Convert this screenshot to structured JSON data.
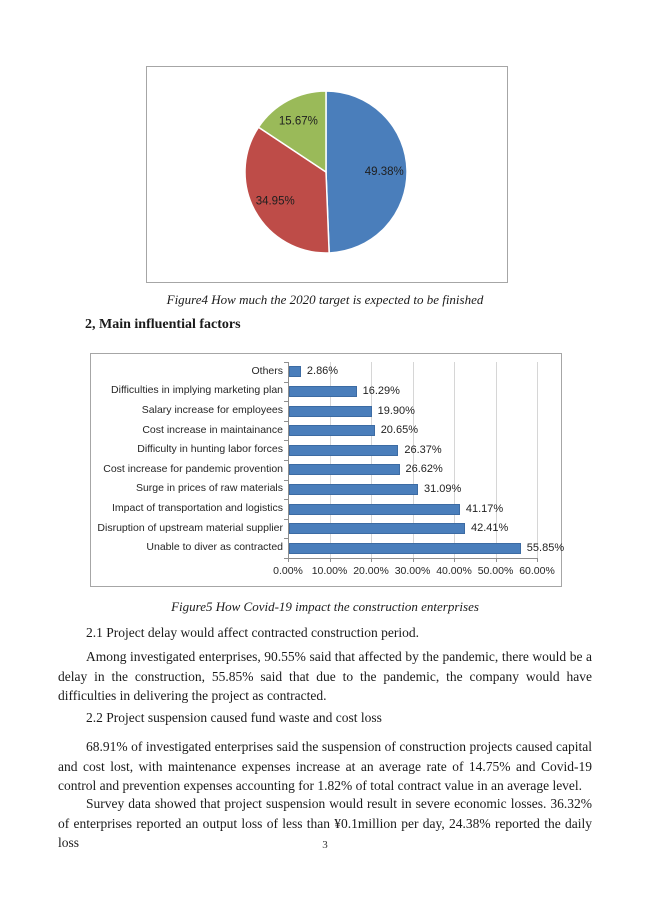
{
  "document": {
    "figure4_caption": "Figure4 How much the 2020 target is expected to be finished",
    "section_heading": "2, Main influential factors",
    "figure5_caption": "Figure5 How Covid-19 impact the construction enterprises",
    "para_2_1": "2.1 Project delay would affect contracted construction period.",
    "para_2_1_body": "Among investigated enterprises, 90.55% said that affected by the pandemic, there would be a delay in the construction, 55.85% said that due to the pandemic, the company would have difficulties in delivering the project as contracted.",
    "para_2_2": "2.2 Project suspension caused fund waste and cost loss",
    "para_2_2_body": "68.91% of investigated enterprises said the suspension of construction projects caused capital and cost lost, with maintenance expenses increase at an average rate of 14.75% and Covid-19 control and prevention expenses accounting for 1.82% of total contract value in an average level.",
    "para_survey": "Survey data showed that project suspension would result in severe economic losses. 36.32% of enterprises reported an output loss of less than ¥0.1million per day, 24.38% reported the daily loss",
    "page_number": "3"
  },
  "chart_data": [
    {
      "type": "pie",
      "title": "How much the 2020 target is expected to be finished",
      "labels": [
        "49.38%",
        "34.95%",
        "15.67%"
      ],
      "values": [
        49.38,
        34.95,
        15.67
      ],
      "colors": [
        "#4a7ebb",
        "#be4c48",
        "#9aba59"
      ],
      "start_angle_deg": 0,
      "direction": "clockwise",
      "legend": "none"
    },
    {
      "type": "bar",
      "orientation": "horizontal",
      "title": "How Covid-19 impact the construction enterprises",
      "categories": [
        "Others",
        "Difficulties in implying marketing plan",
        "Salary increase for employees",
        "Cost increase in maintainance",
        "Difficulty in hunting labor forces",
        "Cost increase for pandemic provention",
        "Surge in prices of raw materials",
        "Impact of transportation and logistics",
        "Disruption of upstream material supplier",
        "Unable to diver as contracted"
      ],
      "values": [
        2.86,
        16.29,
        19.9,
        20.65,
        26.37,
        26.62,
        31.09,
        41.17,
        42.41,
        55.85
      ],
      "value_labels": [
        "2.86%",
        "16.29%",
        "19.90%",
        "20.65%",
        "26.37%",
        "26.62%",
        "31.09%",
        "41.17%",
        "42.41%",
        "55.85%"
      ],
      "xlim": [
        0,
        60
      ],
      "x_ticks": [
        "0.00%",
        "10.00%",
        "20.00%",
        "30.00%",
        "40.00%",
        "50.00%",
        "60.00%"
      ],
      "bar_color": "#4a7ebb",
      "bar_border_color": "#3c6ba3",
      "grid": true,
      "legend": "none"
    }
  ]
}
